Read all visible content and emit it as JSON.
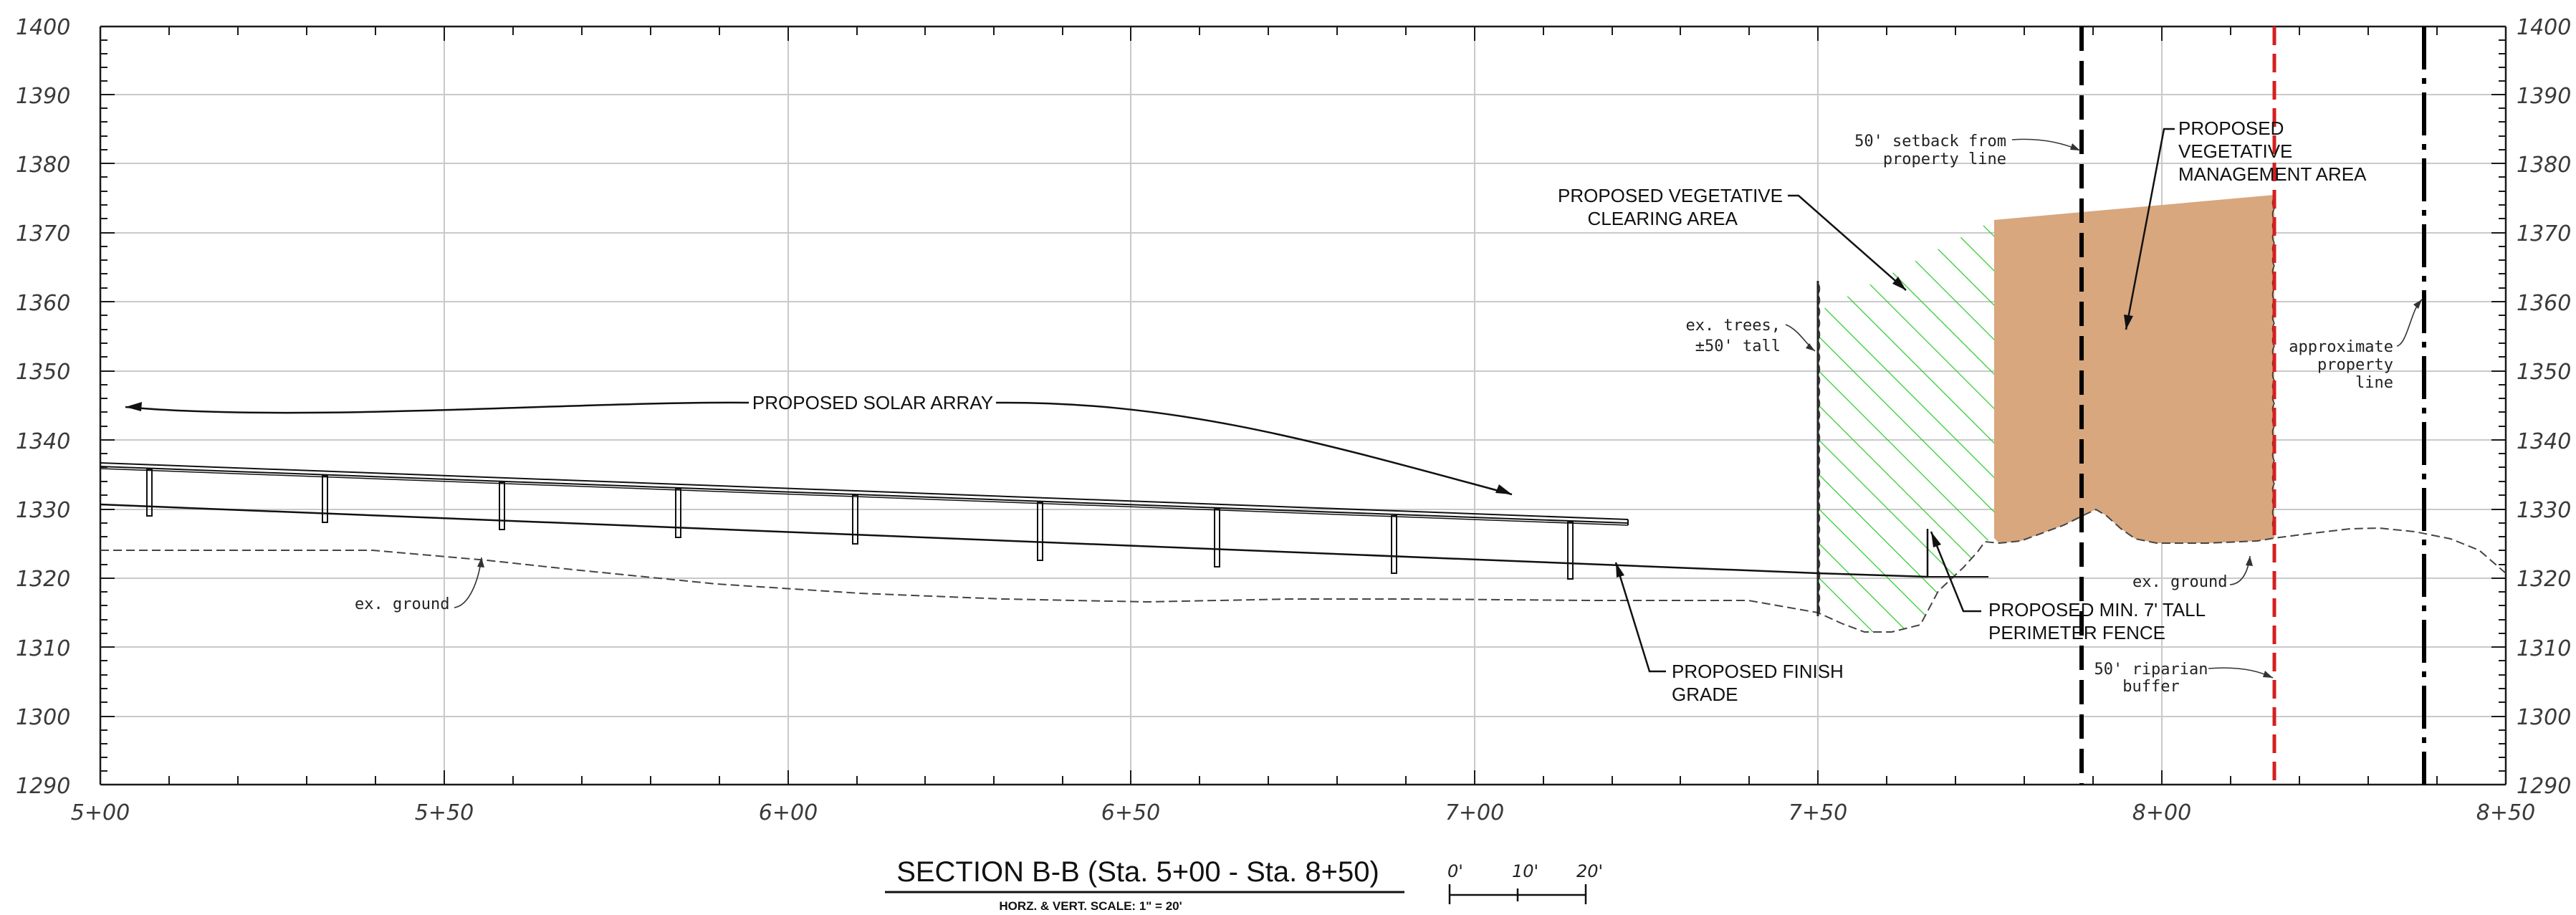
{
  "section": {
    "title": "SECTION B-B (Sta. 5+00 - Sta. 8+50)",
    "scale_note": "HORZ. & VERT. SCALE: 1\" =  20'",
    "bar_scale_labels": [
      "0'",
      "10'",
      "20'"
    ]
  },
  "axes": {
    "elevations": [
      "1400",
      "1390",
      "1380",
      "1370",
      "1360",
      "1350",
      "1340",
      "1330",
      "1320",
      "1310",
      "1300",
      "1290"
    ],
    "stations": [
      "5+00",
      "5+50",
      "6+00",
      "6+50",
      "7+00",
      "7+50",
      "8+00",
      "8+50"
    ]
  },
  "callouts": {
    "solar_array": "PROPOSED SOLAR ARRAY",
    "ex_ground_left": "ex. ground",
    "ex_ground_right": "ex. ground",
    "finish_grade": [
      "PROPOSED FINISH",
      "GRADE"
    ],
    "fence": [
      "PROPOSED MIN. 7' TALL",
      "PERIMETER FENCE"
    ],
    "clearing": [
      "PROPOSED VEGETATIVE",
      "CLEARING AREA"
    ],
    "management": [
      "PROPOSED",
      "VEGETATIVE",
      "MANAGEMENT AREA"
    ],
    "setback": [
      "50' setback from",
      "property line"
    ],
    "trees": [
      "ex. trees,",
      "±50' tall"
    ],
    "property_line": [
      "approximate",
      "property",
      "line"
    ],
    "riparian": [
      "50' riparian",
      "buffer"
    ]
  },
  "colors": {
    "clearing_hatch": "#2ecc2e",
    "management_fill": "#d8a77e",
    "riparian_line": "#d42020",
    "setback_line": "#000000"
  }
}
